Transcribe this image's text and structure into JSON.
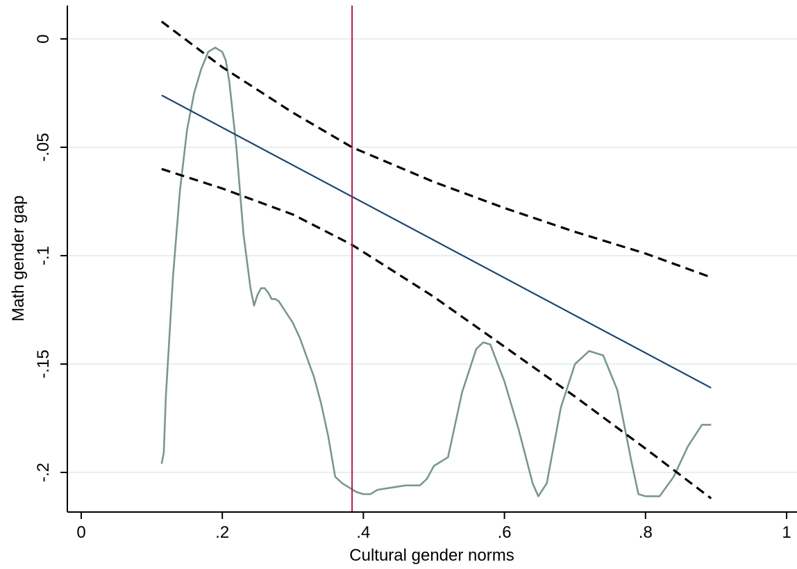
{
  "colors": {
    "background": "#ffffff",
    "grid": "#e7efef",
    "fitted_line": "#1a476f",
    "ci_lines": "#000000",
    "density_line": "#7a9692",
    "reference_line": "#b5174a",
    "axis": "#000000"
  },
  "chart_data": {
    "type": "line",
    "title": "",
    "xlabel": "Cultural gender norms",
    "ylabel": "Math gender gap",
    "xlim": [
      0,
      1
    ],
    "ylim": [
      -0.218,
      0.015
    ],
    "x_ticks": [
      0,
      0.2,
      0.4,
      0.6,
      0.8,
      1
    ],
    "x_tick_labels": [
      "0",
      ".2",
      ".4",
      ".6",
      ".8",
      "1"
    ],
    "y_ticks": [
      0,
      -0.05,
      -0.1,
      -0.15,
      -0.2
    ],
    "y_tick_labels": [
      "0",
      "-.05",
      "-.1",
      "-.15",
      "-.2"
    ],
    "grid": "horizontal",
    "legend": "none",
    "reference_line_x": 0.384,
    "series": [
      {
        "style": "solid",
        "color": "#1a476f",
        "x": [
          0.114,
          0.893
        ],
        "y": [
          -0.026,
          -0.161
        ]
      },
      {
        "style": "dashed",
        "color": "#000000",
        "x": [
          0.114,
          0.2,
          0.3,
          0.384,
          0.5,
          0.6,
          0.7,
          0.8,
          0.893
        ],
        "y": [
          0.008,
          -0.013,
          -0.034,
          -0.05,
          -0.066,
          -0.078,
          -0.089,
          -0.099,
          -0.11
        ]
      },
      {
        "style": "dashed",
        "color": "#000000",
        "x": [
          0.114,
          0.2,
          0.3,
          0.384,
          0.5,
          0.6,
          0.7,
          0.8,
          0.893
        ],
        "y": [
          -0.06,
          -0.069,
          -0.081,
          -0.095,
          -0.119,
          -0.142,
          -0.165,
          -0.189,
          -0.212
        ]
      },
      {
        "style": "solid",
        "color": "#7a9692",
        "x": [
          0.114,
          0.117,
          0.12,
          0.13,
          0.14,
          0.15,
          0.16,
          0.17,
          0.18,
          0.19,
          0.2,
          0.205,
          0.21,
          0.22,
          0.23,
          0.24,
          0.245,
          0.25,
          0.255,
          0.26,
          0.265,
          0.27,
          0.275,
          0.28,
          0.29,
          0.3,
          0.31,
          0.32,
          0.33,
          0.34,
          0.35,
          0.36,
          0.37,
          0.38,
          0.39,
          0.4,
          0.41,
          0.42,
          0.44,
          0.46,
          0.48,
          0.49,
          0.5,
          0.52,
          0.54,
          0.56,
          0.57,
          0.58,
          0.6,
          0.62,
          0.64,
          0.648,
          0.66,
          0.68,
          0.7,
          0.72,
          0.74,
          0.76,
          0.78,
          0.79,
          0.8,
          0.81,
          0.82,
          0.84,
          0.86,
          0.88,
          0.893
        ],
        "y": [
          -0.196,
          -0.191,
          -0.165,
          -0.11,
          -0.07,
          -0.042,
          -0.025,
          -0.014,
          -0.006,
          -0.004,
          -0.006,
          -0.01,
          -0.02,
          -0.05,
          -0.09,
          -0.115,
          -0.123,
          -0.118,
          -0.115,
          -0.115,
          -0.117,
          -0.12,
          -0.12,
          -0.121,
          -0.126,
          -0.131,
          -0.138,
          -0.147,
          -0.156,
          -0.168,
          -0.183,
          -0.202,
          -0.205,
          -0.207,
          -0.209,
          -0.21,
          -0.21,
          -0.208,
          -0.207,
          -0.206,
          -0.206,
          -0.203,
          -0.197,
          -0.193,
          -0.163,
          -0.143,
          -0.14,
          -0.141,
          -0.158,
          -0.18,
          -0.205,
          -0.211,
          -0.205,
          -0.17,
          -0.15,
          -0.144,
          -0.146,
          -0.162,
          -0.195,
          -0.21,
          -0.211,
          -0.211,
          -0.211,
          -0.202,
          -0.188,
          -0.178,
          -0.178
        ]
      }
    ]
  }
}
